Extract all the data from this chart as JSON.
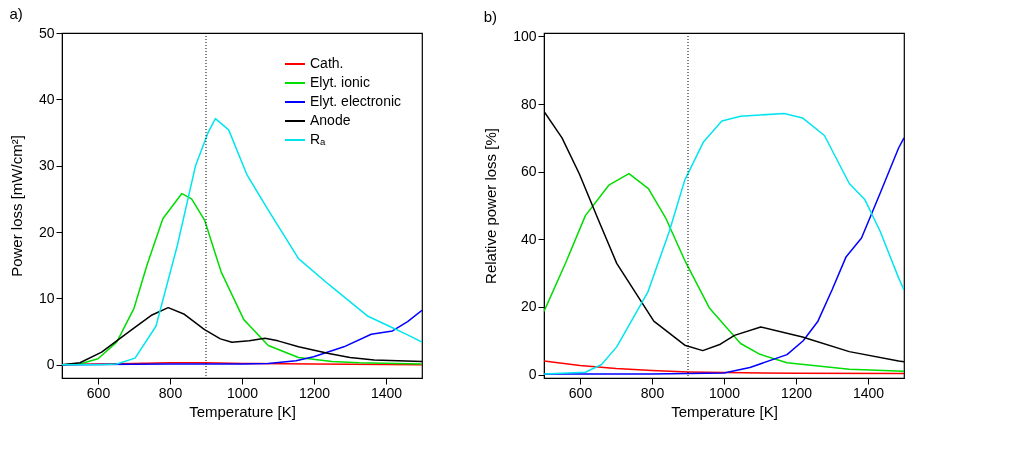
{
  "chart_data": [
    {
      "type": "line",
      "title": "a)",
      "xlabel": "Temperature [K]",
      "ylabel": "Power loss [mW/cm²]",
      "xlim": [
        500,
        1500
      ],
      "ylim": [
        -2,
        50
      ],
      "xticks": [
        600,
        800,
        1000,
        1200,
        1400
      ],
      "yticks": [
        0,
        10,
        20,
        30,
        40,
        50
      ],
      "grid": false,
      "legend": "top right",
      "line_style": "solid",
      "marker": "none",
      "ref_lines": [
        {
          "axis": "x",
          "value": 900,
          "color": "#000000",
          "line_style": "dotted"
        }
      ],
      "series": [
        {
          "name": "Cath.",
          "color": "#ff0000",
          "x": [
            500,
            600,
            700,
            800,
            900,
            1000,
            1200,
            1500
          ],
          "values": [
            0,
            0.1,
            0.2,
            0.3,
            0.3,
            0.2,
            0.1,
            0
          ]
        },
        {
          "name": "Elyt. ionic",
          "color": "#00dd00",
          "x": [
            500,
            550,
            600,
            652,
            700,
            736,
            780,
            833,
            860,
            896,
            942,
            1005,
            1073,
            1157,
            1250,
            1325,
            1500
          ],
          "values": [
            0,
            0.1,
            0.9,
            3.4,
            8.5,
            15,
            22,
            25.8,
            25,
            21.8,
            14,
            6.8,
            2.9,
            1.1,
            0.5,
            0.3,
            0.1
          ]
        },
        {
          "name": "Elyt. electronic",
          "color": "#0000ff",
          "x": [
            500,
            800,
            1000,
            1073,
            1150,
            1199,
            1283,
            1359,
            1418,
            1460,
            1500
          ],
          "values": [
            0,
            0.1,
            0.1,
            0.2,
            0.6,
            1.2,
            2.7,
            4.6,
            5.1,
            6.5,
            8.2
          ]
        },
        {
          "name": "Anode",
          "color": "#000000",
          "x": [
            500,
            550,
            610,
            694,
            750,
            795,
            840,
            896,
            940,
            972,
            1020,
            1064,
            1100,
            1157,
            1241,
            1300,
            1367,
            1500
          ],
          "values": [
            0,
            0.3,
            1.9,
            5.3,
            7.5,
            8.6,
            7.6,
            5.3,
            3.9,
            3.4,
            3.6,
            4.0,
            3.6,
            2.7,
            1.7,
            1.1,
            0.7,
            0.5
          ]
        },
        {
          "name": "Rₐ",
          "color": "#00e5ee",
          "x": [
            500,
            600,
            652,
            703,
            761,
            820,
            871,
            905,
            926,
            963,
            1014,
            1073,
            1157,
            1241,
            1350,
            1409,
            1460,
            1500
          ],
          "values": [
            0,
            0,
            0.1,
            1.0,
            5.8,
            17.9,
            30,
            34.9,
            37.1,
            35.4,
            28.6,
            23.3,
            16,
            12.1,
            7.3,
            5.8,
            4.5,
            3.4
          ]
        }
      ]
    },
    {
      "type": "line",
      "title": "b)",
      "xlabel": "Temperature [K]",
      "ylabel": "Relative power loss [%]",
      "xlim": [
        500,
        1500
      ],
      "ylim": [
        -1,
        101
      ],
      "xticks": [
        600,
        800,
        1000,
        1200,
        1400
      ],
      "yticks": [
        0,
        20,
        40,
        60,
        80,
        100
      ],
      "grid": false,
      "line_style": "solid",
      "marker": "none",
      "ref_lines": [
        {
          "axis": "x",
          "value": 900,
          "color": "#000000",
          "line_style": "dotted"
        }
      ],
      "series": [
        {
          "color": "#ff0000",
          "x": [
            500,
            600,
            700,
            800,
            900,
            1000,
            1200,
            1500
          ],
          "values": [
            4,
            2.7,
            1.8,
            1.2,
            0.8,
            0.6,
            0.4,
            0.3
          ]
        },
        {
          "color": "#00dd00",
          "x": [
            500,
            560,
            615,
            680,
            736,
            790,
            839,
            891,
            960,
            1046,
            1100,
            1175,
            1348,
            1500
          ],
          "values": [
            18.7,
            33,
            47,
            56,
            59.4,
            55,
            46.1,
            33.8,
            19.6,
            9.2,
            6,
            3.5,
            1.6,
            1.0
          ]
        },
        {
          "color": "#0000ff",
          "x": [
            500,
            800,
            1000,
            1072,
            1175,
            1220,
            1261,
            1300,
            1339,
            1382,
            1434,
            1485,
            1500
          ],
          "values": [
            0.2,
            0.2,
            0.5,
            2.1,
            5.9,
            10,
            15.8,
            25,
            34.8,
            40.4,
            53.7,
            67,
            70
          ]
        },
        {
          "color": "#000000",
          "x": [
            500,
            550,
            598,
            650,
            702,
            805,
            891,
            941,
            990,
            1029,
            1102,
            1218,
            1348,
            1485,
            1500
          ],
          "values": [
            77.8,
            70,
            59.4,
            46,
            32.9,
            15.8,
            8.7,
            7.1,
            9,
            11.6,
            14.1,
            11.1,
            6.8,
            4.0,
            3.8
          ]
        },
        {
          "color": "#00e5ee",
          "x": [
            500,
            615,
            660,
            702,
            788,
            848,
            891,
            943,
            994,
            1046,
            1167,
            1218,
            1279,
            1348,
            1391,
            1434,
            1485,
            1500
          ],
          "values": [
            0.2,
            0.7,
            3,
            8.2,
            24.3,
            42.3,
            57.5,
            68.8,
            75,
            76.4,
            77.2,
            75.9,
            70.7,
            56.5,
            51.8,
            42.3,
            28.6,
            25
          ]
        }
      ]
    }
  ]
}
